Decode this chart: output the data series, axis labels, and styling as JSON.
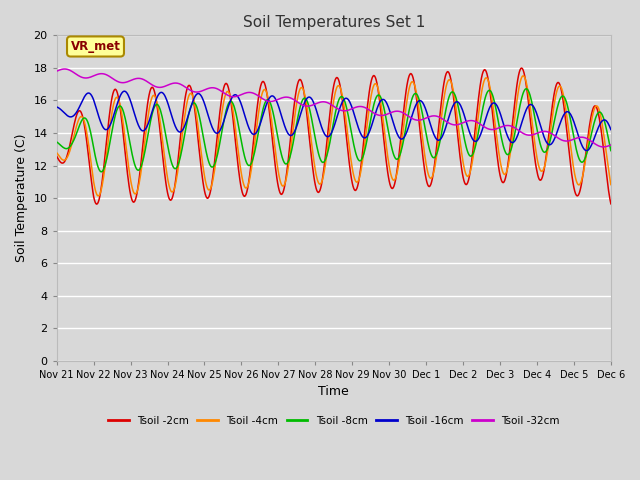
{
  "title": "Soil Temperatures Set 1",
  "xlabel": "Time",
  "ylabel": "Soil Temperature (C)",
  "ylim": [
    0,
    20
  ],
  "xlim": [
    0,
    360
  ],
  "fig_bg_color": "#d8d8d8",
  "plot_bg_color": "#d8d8d8",
  "grid_color": "#ffffff",
  "colors": {
    "Tsoil -2cm": "#dd0000",
    "Tsoil -4cm": "#ff8800",
    "Tsoil -8cm": "#00bb00",
    "Tsoil -16cm": "#0000cc",
    "Tsoil -32cm": "#cc00cc"
  },
  "legend_labels": [
    "Tsoil -2cm",
    "Tsoil -4cm",
    "Tsoil -8cm",
    "Tsoil -16cm",
    "Tsoil -32cm"
  ],
  "annotation_text": "VR_met",
  "annotation_bg": "#ffff99",
  "annotation_border": "#aa8800",
  "xtick_labels": [
    "Nov 21",
    "Nov 22",
    "Nov 23",
    "Nov 24",
    "Nov 25",
    "Nov 26",
    "Nov 27",
    "Nov 28",
    "Nov 29",
    "Nov 30",
    "Dec 1",
    "Dec 2",
    "Dec 3",
    "Dec 4",
    "Dec 5",
    "Dec 6"
  ],
  "ytick_labels": [
    "0",
    "2",
    "4",
    "6",
    "8",
    "10",
    "12",
    "14",
    "16",
    "18",
    "20"
  ],
  "ytick_values": [
    0,
    2,
    4,
    6,
    8,
    10,
    12,
    14,
    16,
    18,
    20
  ],
  "n_points": 721
}
